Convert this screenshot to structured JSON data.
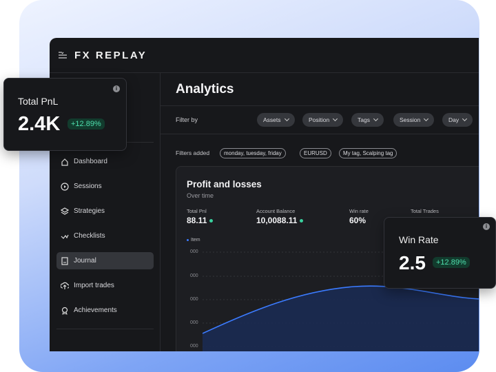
{
  "app": {
    "logo": "FX REPLAY",
    "title": "Analytics"
  },
  "sidebar": {
    "items": [
      "Dashboard",
      "Sessions",
      "Strategies",
      "Checklists",
      "Journal",
      "Import trades",
      "Achievements"
    ]
  },
  "filters": {
    "label": "Filter by",
    "options": [
      "Assets",
      "Position",
      "Tags",
      "Session",
      "Day"
    ],
    "added_label": "Filters added",
    "added": [
      "monday, tuesday, friday",
      "EURUSD",
      "My tag, Scalping tag"
    ]
  },
  "panel": {
    "title": "Profit and losses",
    "subtitle": "Over time",
    "stats": [
      {
        "label": "Total Pnl",
        "value": "88.11"
      },
      {
        "label": "Account Balance",
        "value": "10,0088.11"
      },
      {
        "label": "Win rate",
        "value": "60%"
      },
      {
        "label": "Total Trades",
        "value": ""
      }
    ],
    "legend": "Item",
    "yticks": [
      "000",
      "000",
      "000",
      "000",
      "000"
    ]
  },
  "cards": [
    {
      "title": "Total PnL",
      "value": "2.4K",
      "change": "+12.89%"
    },
    {
      "title": "Win Rate",
      "value": "2.5",
      "change": "+12.89%"
    }
  ]
}
